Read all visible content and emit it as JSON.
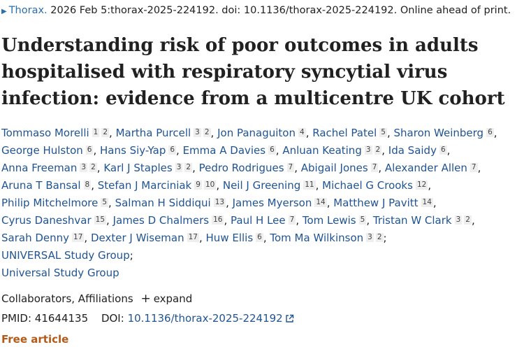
{
  "citation": {
    "journal": "Thorax.",
    "details": "2026 Feb 5:thorax-2025-224192. doi: 10.1136/thorax-2025-224192. Online ahead of print."
  },
  "article": {
    "title_line1": "Understanding risk of poor outcomes in adults",
    "title_line2": "hospitalised with respiratory syncytial virus",
    "title_line3": "infection: evidence from a multicentre UK cohort"
  },
  "authors": [
    {
      "name": "Tommaso Morelli",
      "affs": [
        "1",
        "2"
      ]
    },
    {
      "name": "Martha Purcell",
      "affs": [
        "3",
        "2"
      ]
    },
    {
      "name": "Jon Panaguiton",
      "affs": [
        "4"
      ]
    },
    {
      "name": "Rachel Patel",
      "affs": [
        "5"
      ]
    },
    {
      "name": "Sharon Weinberg",
      "affs": [
        "6"
      ]
    },
    {
      "name": "George Hulston",
      "affs": [
        "6"
      ]
    },
    {
      "name": "Hans Siy-Yap",
      "affs": [
        "6"
      ]
    },
    {
      "name": "Emma A Davies",
      "affs": [
        "6"
      ]
    },
    {
      "name": "Anluan Keating",
      "affs": [
        "3",
        "2"
      ]
    },
    {
      "name": "Ida Saidy",
      "affs": [
        "6"
      ]
    },
    {
      "name": "Anna Freeman",
      "affs": [
        "3",
        "2"
      ]
    },
    {
      "name": "Karl J Staples",
      "affs": [
        "3",
        "2"
      ]
    },
    {
      "name": "Pedro Rodrigues",
      "affs": [
        "7"
      ]
    },
    {
      "name": "Abigail Jones",
      "affs": [
        "7"
      ]
    },
    {
      "name": "Alexander Allen",
      "affs": [
        "7"
      ]
    },
    {
      "name": "Aruna T Bansal",
      "affs": [
        "8"
      ]
    },
    {
      "name": "Stefan J Marciniak",
      "affs": [
        "9",
        "10"
      ]
    },
    {
      "name": "Neil J Greening",
      "affs": [
        "11"
      ]
    },
    {
      "name": "Michael G Crooks",
      "affs": [
        "12"
      ]
    },
    {
      "name": "Philip Mitchelmore",
      "affs": [
        "5"
      ]
    },
    {
      "name": "Salman H Siddiqui",
      "affs": [
        "13"
      ]
    },
    {
      "name": "James Myerson",
      "affs": [
        "14"
      ]
    },
    {
      "name": "Matthew J Pavitt",
      "affs": [
        "14"
      ]
    },
    {
      "name": "Cyrus Daneshvar",
      "affs": [
        "15"
      ]
    },
    {
      "name": "James D Chalmers",
      "affs": [
        "16"
      ]
    },
    {
      "name": "Paul H Lee",
      "affs": [
        "7"
      ]
    },
    {
      "name": "Tom Lewis",
      "affs": [
        "5"
      ]
    },
    {
      "name": "Tristan W Clark",
      "affs": [
        "3",
        "2"
      ]
    },
    {
      "name": "Sarah Denny",
      "affs": [
        "17"
      ]
    },
    {
      "name": "Dexter J Wiseman",
      "affs": [
        "17"
      ]
    },
    {
      "name": "Huw Ellis",
      "affs": [
        "6"
      ]
    },
    {
      "name": "Tom Ma Wilkinson",
      "affs": [
        "3",
        "2"
      ]
    }
  ],
  "groups": [
    "UNIVERSAL Study Group",
    "Universal Study Group"
  ],
  "meta": {
    "collaborators_label": "Collaborators, Affiliations",
    "expand_label": "expand",
    "pmid_label": "PMID:",
    "pmid_value": "41644135",
    "doi_label": "DOI:",
    "doi_value": "10.1136/thorax-2025-224192",
    "free_label": "Free article"
  },
  "colors": {
    "link": "#205493",
    "free_article": "#b35a18"
  }
}
